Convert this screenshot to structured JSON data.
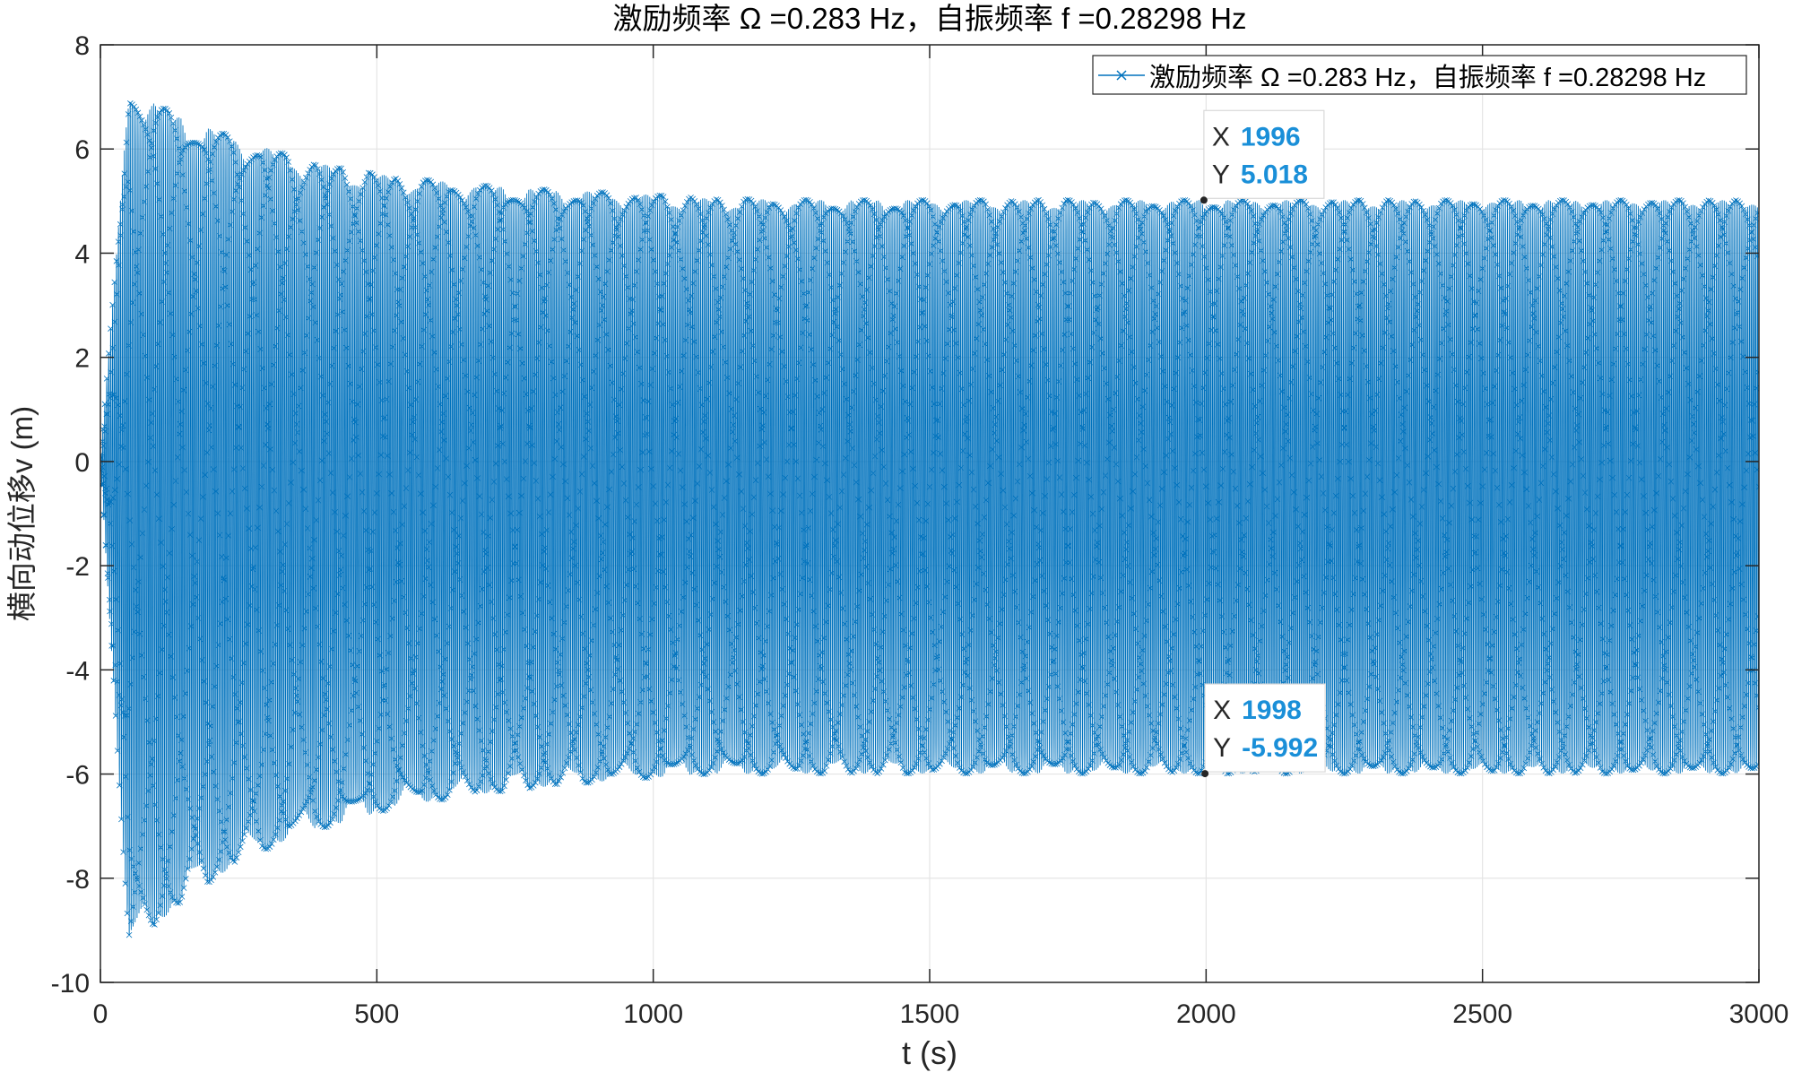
{
  "chart_data": {
    "type": "line",
    "title": "激励频率 Ω =0.283 Hz，自振频率 f =0.28298 Hz",
    "xlabel": "t (s)",
    "ylabel": "横向动位移v (m)",
    "xlim": [
      0,
      3000
    ],
    "ylim": [
      -10,
      8
    ],
    "xticks": [
      0,
      500,
      1000,
      1500,
      2000,
      2500,
      3000
    ],
    "yticks": [
      -10,
      -8,
      -6,
      -4,
      -2,
      0,
      2,
      4,
      6,
      8
    ],
    "grid": true,
    "legend_position": "top-right",
    "series": [
      {
        "name": "激励频率 Ω =0.283 Hz，自振频率 f =0.28298 Hz",
        "color": "#0072BD",
        "marker": "x",
        "description_points": {
          "upper_envelope_peaks": [
            [
              52,
              7.2
            ],
            [
              152,
              6.55
            ],
            [
              250,
              6.2
            ],
            [
              348,
              5.85
            ],
            [
              447,
              5.6
            ],
            [
              548,
              5.45
            ],
            [
              645,
              5.35
            ],
            [
              745,
              5.25
            ],
            [
              850,
              5.2
            ],
            [
              950,
              5.15
            ],
            [
              1100,
              5.05
            ],
            [
              1300,
              5.02
            ],
            [
              1996,
              5.018
            ],
            [
              3000,
              5.018
            ]
          ],
          "lower_envelope_troughs": [
            [
              52,
              -9.4
            ],
            [
              150,
              -8.4
            ],
            [
              250,
              -7.7
            ],
            [
              348,
              -7.2
            ],
            [
              447,
              -6.9
            ],
            [
              548,
              -6.6
            ],
            [
              645,
              -6.45
            ],
            [
              745,
              -6.3
            ],
            [
              850,
              -6.2
            ],
            [
              950,
              -6.1
            ],
            [
              1100,
              -6.0
            ],
            [
              1300,
              -5.99
            ],
            [
              1998,
              -5.992
            ],
            [
              3000,
              -5.992
            ]
          ],
          "excitation_frequency_hz": 0.283
        }
      }
    ],
    "datatips": [
      {
        "x_label": "X",
        "x": "1996",
        "y_label": "Y",
        "y": "5.018",
        "x_value": 1996,
        "y_value": 5.018
      },
      {
        "x_label": "X",
        "x": "1998",
        "y_label": "Y",
        "y": "-5.992",
        "x_value": 1998,
        "y_value": -5.992
      }
    ]
  }
}
